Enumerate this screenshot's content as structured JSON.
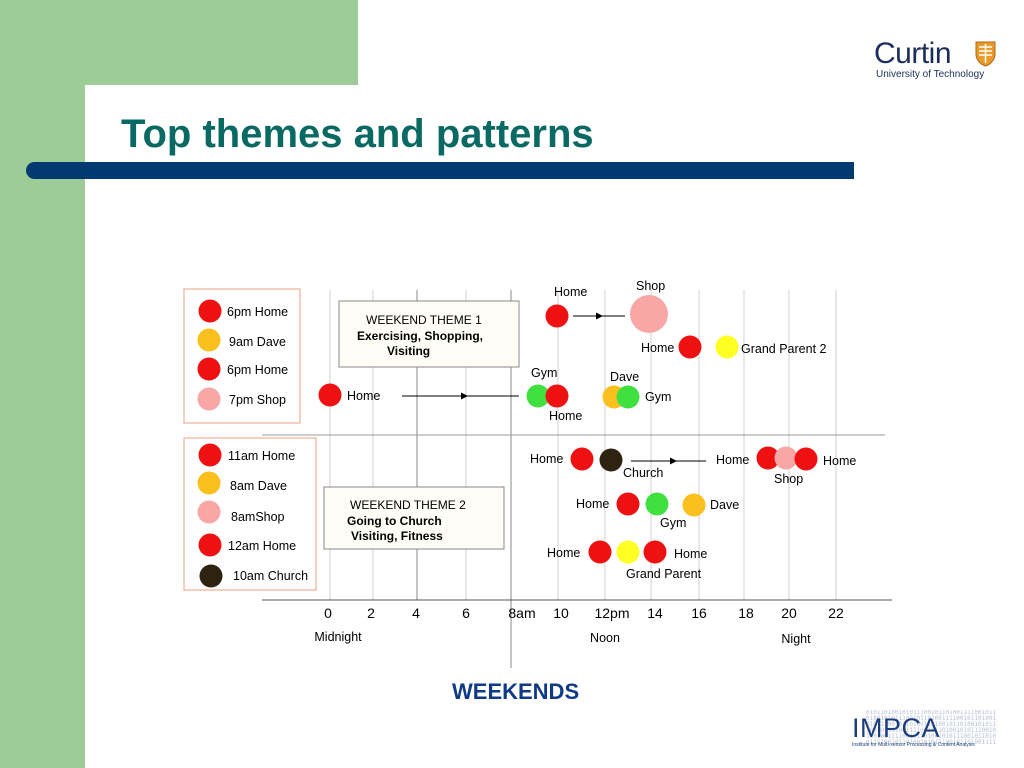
{
  "slide": {
    "title": "Top themes and patterns",
    "colors": {
      "sidebar": "#9dcc99",
      "title": "#0a6a63",
      "rule": "#003a70"
    }
  },
  "logos": {
    "curtin": {
      "name": "Curtin",
      "subtitle": "University of Technology",
      "icon": "curtin-shield-icon"
    },
    "impca": {
      "name": "IMPCA",
      "subtitle": "Institute for Multi-sensor Processing & Content Analysis",
      "bits": "0101101001010111001011010011110010110100101011100101101001111001011010010101110010110100111100101101001010111001011010011110010110100101011100101101001111001011010010101110010110100111100101101001010111001011010011110010110100101011100101101001111001011010010101110010110100111100101101001010111001011010011110010110100101011100"
    }
  },
  "legend1": [
    {
      "label": "6pm Home",
      "color": "#ee1111"
    },
    {
      "label": "9am Dave",
      "color": "#fbbf1e"
    },
    {
      "label": "6pm Home",
      "color": "#ee1111"
    },
    {
      "label": "7pm Shop",
      "color": "#f8a6a6"
    }
  ],
  "legend2": [
    {
      "label": "11am Home",
      "color": "#ee1111"
    },
    {
      "label": "8am Dave",
      "color": "#fbbf1e"
    },
    {
      "label": "8amShop",
      "color": "#f8a6a6"
    },
    {
      "label": "12am Home",
      "color": "#ee1111"
    },
    {
      "label": "10am Church",
      "color": "#2e2310"
    }
  ],
  "theme1": {
    "heading": "WEEKEND THEME 1",
    "line1": "Exercising, Shopping,",
    "line2": "Visiting"
  },
  "theme2": {
    "heading": "WEEKEND THEME 2",
    "line1": "Going to Church",
    "line2": "Visiting, Fitness"
  },
  "axis": {
    "ticks": [
      "0",
      "2",
      "4",
      "6",
      "8am",
      "10",
      "12pm",
      "14",
      "16",
      "18",
      "20",
      "22"
    ],
    "period_labels": [
      "Midnight",
      "Noon",
      "Night"
    ]
  },
  "palette": {
    "home": "#ee1111",
    "dave": "#fbbf1e",
    "shop": "#f8a6a6",
    "gym": "#40e040",
    "grandparent": "#ffff22",
    "church": "#2e2310"
  },
  "events": [
    {
      "place": "home",
      "color": "#ee1111"
    },
    {
      "place": "shop",
      "color": "#f8a6a6"
    },
    {
      "place": "home",
      "color": "#ee1111"
    },
    {
      "place": "grandparent",
      "color": "#ffff22"
    },
    {
      "place": "home",
      "color": "#ee1111"
    },
    {
      "place": "gym",
      "color": "#40e040"
    },
    {
      "place": "home",
      "color": "#ee1111"
    },
    {
      "place": "dave",
      "color": "#fbbf1e"
    },
    {
      "place": "gym",
      "color": "#40e040"
    },
    {
      "place": "home",
      "color": "#ee1111"
    },
    {
      "place": "church",
      "color": "#2e2310"
    },
    {
      "place": "home",
      "color": "#ee1111"
    },
    {
      "place": "shop",
      "color": "#f8a6a6"
    },
    {
      "place": "home",
      "color": "#ee1111"
    },
    {
      "place": "home",
      "color": "#ee1111"
    },
    {
      "place": "gym",
      "color": "#40e040"
    },
    {
      "place": "dave",
      "color": "#fbbf1e"
    },
    {
      "place": "home",
      "color": "#ee1111"
    },
    {
      "place": "grandparent",
      "color": "#ffff22"
    },
    {
      "place": "home",
      "color": "#ee1111"
    }
  ],
  "event_labels": [
    "Home",
    "Shop",
    "Home",
    "Grand Parent 2",
    "Gym",
    "Dave",
    "Home",
    "Gym",
    "Home",
    "Home",
    "Church",
    "Home",
    "Home",
    "Shop",
    "Home",
    "Dave",
    "Gym",
    "Home",
    "Home",
    "Grand Parent"
  ],
  "caption": "WEEKENDS"
}
